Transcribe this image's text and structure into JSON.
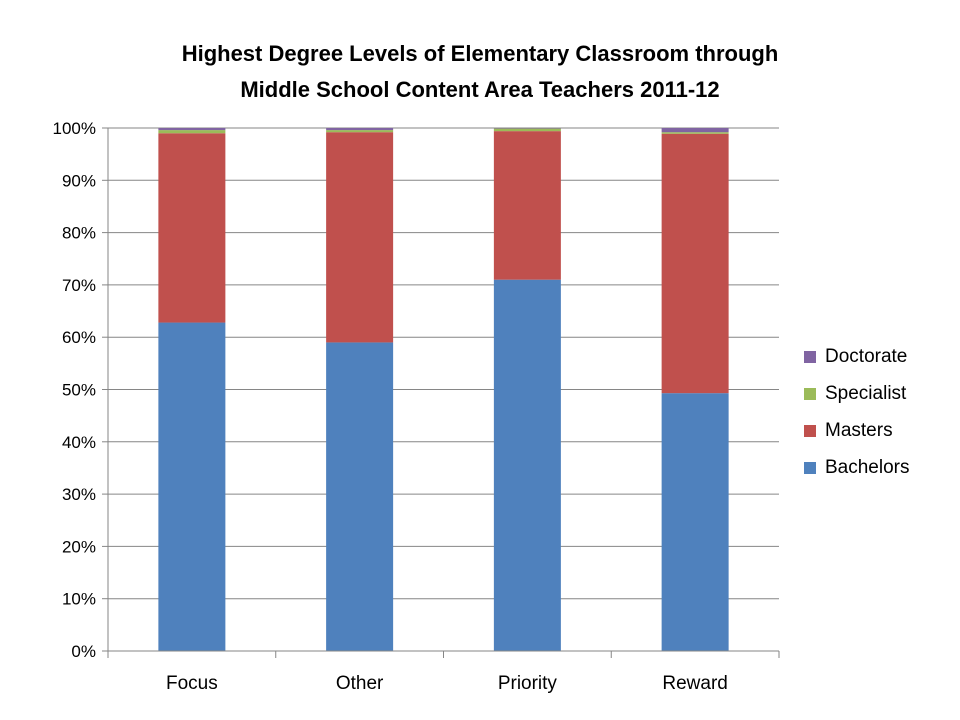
{
  "chart_data": {
    "type": "bar",
    "stacked": true,
    "title_line1": "Highest Degree Levels of Elementary Classroom through",
    "title_line2": "Middle School Content Area Teachers 2011-12",
    "categories": [
      "Focus",
      "Other",
      "Priority",
      "Reward"
    ],
    "y_ticks": [
      "0%",
      "10%",
      "20%",
      "30%",
      "40%",
      "50%",
      "60%",
      "70%",
      "80%",
      "90%",
      "100%"
    ],
    "ylim": [
      0,
      100
    ],
    "grid": true,
    "legend_position": "right",
    "series": [
      {
        "name": "Bachelors",
        "color": "#4F81BD",
        "values": [
          62.8,
          59.0,
          71.0,
          49.3
        ]
      },
      {
        "name": "Masters",
        "color": "#C0504D",
        "values": [
          36.2,
          40.2,
          28.4,
          49.6
        ]
      },
      {
        "name": "Specialist",
        "color": "#9BBB59",
        "values": [
          0.6,
          0.4,
          0.5,
          0.3
        ]
      },
      {
        "name": "Doctorate",
        "color": "#8064A2",
        "values": [
          0.4,
          0.4,
          0.1,
          0.8
        ]
      }
    ],
    "legend_order": [
      "Doctorate",
      "Specialist",
      "Masters",
      "Bachelors"
    ]
  }
}
